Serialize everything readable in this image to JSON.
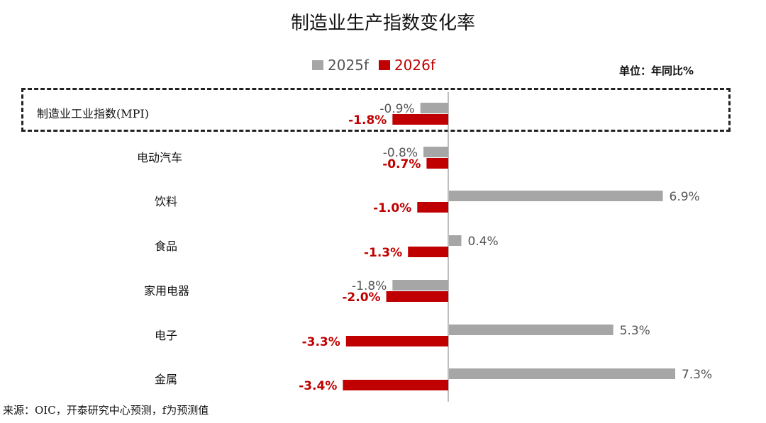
{
  "title": "制造业生产指数变化率",
  "unit": "单位：年同比%",
  "source": "来源：OIC，开泰研究中心预测，f为预测值",
  "colors": {
    "series_2025": "#a6a6a6",
    "series_2026": "#c00000",
    "label_2025": "#555555",
    "label_2026": "#c00000"
  },
  "chart_data": {
    "type": "bar",
    "orientation": "horizontal",
    "title": "制造业生产指数变化率",
    "categories": [
      "制造业工业指数(MPI)",
      "电动汽车",
      "饮料",
      "食品",
      "家用电器",
      "电子",
      "金属"
    ],
    "series": [
      {
        "name": "2025f",
        "values": [
          -0.9,
          -0.8,
          6.9,
          0.4,
          -1.8,
          5.3,
          7.3
        ]
      },
      {
        "name": "2026f",
        "values": [
          -1.8,
          -0.7,
          -1.0,
          -1.3,
          -2.0,
          -3.3,
          -3.4
        ]
      }
    ],
    "value_labels": [
      [
        "-0.9%",
        "-0.8%",
        "6.9%",
        "0.4%",
        "-1.8%",
        "5.3%",
        "7.3%"
      ],
      [
        "-1.8%",
        "-0.7%",
        "-1.0%",
        "-1.3%",
        "-2.0%",
        "-3.3%",
        "-3.4%"
      ]
    ],
    "legend": "top-center",
    "highlighted_category": "制造业工业指数(MPI)"
  }
}
